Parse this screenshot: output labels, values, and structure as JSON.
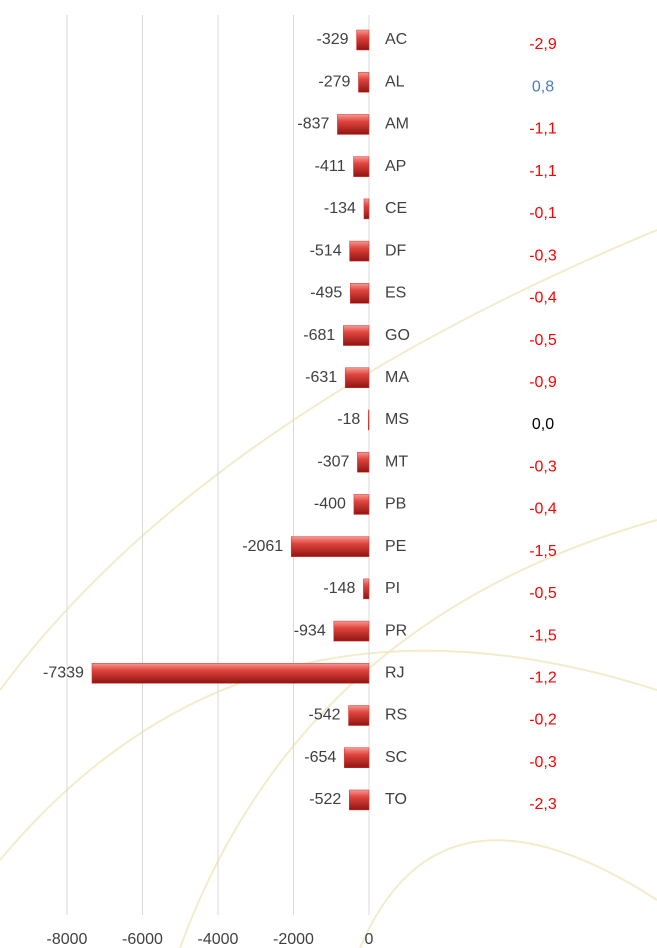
{
  "chart_data": {
    "type": "bar",
    "orientation": "horizontal",
    "categories": [
      "AC",
      "AL",
      "AM",
      "AP",
      "CE",
      "DF",
      "ES",
      "GO",
      "MA",
      "MS",
      "MT",
      "PB",
      "PE",
      "PI",
      "PR",
      "RJ",
      "RS",
      "SC",
      "TO"
    ],
    "values": [
      -329,
      -279,
      -837,
      -411,
      -134,
      -514,
      -495,
      -681,
      -631,
      -18,
      -307,
      -400,
      -2061,
      -148,
      -934,
      -7339,
      -542,
      -654,
      -522
    ],
    "color": "#d9302c",
    "xlim": [
      -8000,
      0
    ],
    "xticks": [
      -8000,
      -6000,
      -4000,
      -2000,
      0
    ],
    "grid": true,
    "side_column": {
      "values": [
        -2.9,
        0.8,
        -1.1,
        -1.1,
        -0.1,
        -0.3,
        -0.4,
        -0.5,
        -0.9,
        0.0,
        -0.3,
        -0.4,
        -1.5,
        -0.5,
        -1.5,
        -1.2,
        -0.2,
        -0.3,
        -2.3
      ],
      "value_labels": [
        "-2,9",
        "0,8",
        "-1,1",
        "-1,1",
        "-0,1",
        "-0,3",
        "-0,4",
        "-0,5",
        "-0,9",
        "0,0",
        "-0,3",
        "-0,4",
        "-1,5",
        "-0,5",
        "-1,5",
        "-1,2",
        "-0,2",
        "-0,3",
        "-2,3"
      ],
      "negative_color": "#ff0000",
      "positive_color": "#4a7ebb",
      "zero_color": "#000000"
    }
  }
}
